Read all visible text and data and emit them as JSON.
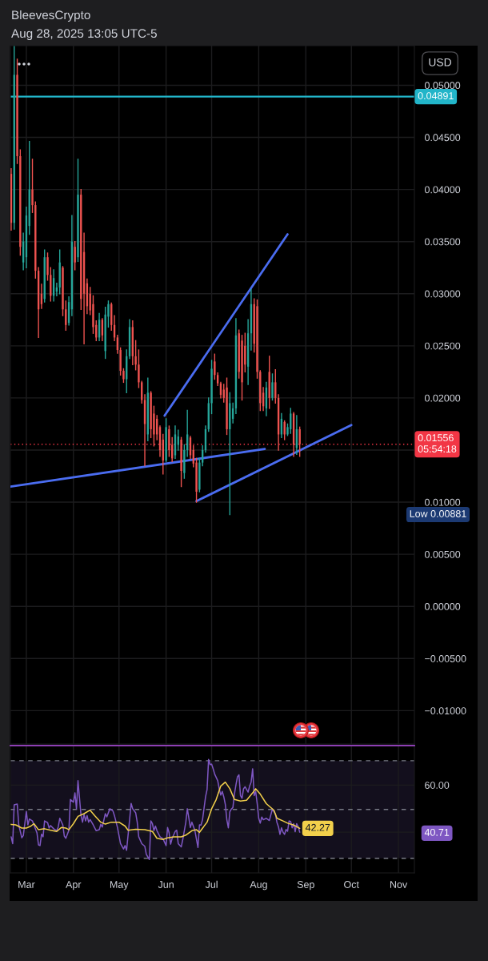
{
  "chart_data": [
    {
      "type": "candlestick",
      "title": "BleevesCrypto",
      "subtitle": "Aug 28, 2025 13:05 UTC-5",
      "ylabel": "USD",
      "x": [
        "2025-02-19",
        "2025-02-21",
        "2025-02-23",
        "2025-02-25",
        "2025-02-27",
        "2025-03-01",
        "2025-03-03",
        "2025-03-05",
        "2025-03-07",
        "2025-03-09",
        "2025-03-11",
        "2025-03-13",
        "2025-03-15",
        "2025-03-17",
        "2025-03-19",
        "2025-03-21",
        "2025-03-23",
        "2025-03-25",
        "2025-03-27",
        "2025-03-29",
        "2025-03-31",
        "2025-04-02",
        "2025-04-04",
        "2025-04-06",
        "2025-04-08",
        "2025-04-10",
        "2025-04-12",
        "2025-04-14",
        "2025-04-16",
        "2025-04-18",
        "2025-04-20",
        "2025-04-22",
        "2025-04-24",
        "2025-04-26",
        "2025-04-28",
        "2025-04-30",
        "2025-05-02",
        "2025-05-04",
        "2025-05-06",
        "2025-05-08",
        "2025-05-10",
        "2025-05-12",
        "2025-05-14",
        "2025-05-16",
        "2025-05-18",
        "2025-05-20",
        "2025-05-22",
        "2025-05-24",
        "2025-05-26",
        "2025-05-28",
        "2025-05-30",
        "2025-06-01",
        "2025-06-03",
        "2025-06-05",
        "2025-06-07",
        "2025-06-09",
        "2025-06-11",
        "2025-06-13",
        "2025-06-15",
        "2025-06-17",
        "2025-06-19",
        "2025-06-21",
        "2025-06-23",
        "2025-06-25",
        "2025-06-27",
        "2025-06-29",
        "2025-07-01",
        "2025-07-03",
        "2025-07-05",
        "2025-07-07",
        "2025-07-09",
        "2025-07-11",
        "2025-07-13",
        "2025-07-15",
        "2025-07-17",
        "2025-07-19",
        "2025-07-21",
        "2025-07-23",
        "2025-07-25",
        "2025-07-27",
        "2025-07-29",
        "2025-07-31",
        "2025-08-02",
        "2025-08-04",
        "2025-08-06",
        "2025-08-08",
        "2025-08-10",
        "2025-08-12",
        "2025-08-14",
        "2025-08-16",
        "2025-08-18",
        "2025-08-20",
        "2025-08-22",
        "2025-08-24",
        "2025-08-26",
        "2025-08-28"
      ],
      "ohlc": [
        [
          0.0415,
          0.042,
          0.0361,
          0.0368
        ],
        [
          0.0368,
          0.0537,
          0.0362,
          0.051
        ],
        [
          0.051,
          0.0525,
          0.0425,
          0.0432
        ],
        [
          0.0432,
          0.0438,
          0.0337,
          0.0345
        ],
        [
          0.033,
          0.0358,
          0.0323,
          0.035
        ],
        [
          0.0335,
          0.0383,
          0.0325,
          0.0375
        ],
        [
          0.0365,
          0.0446,
          0.0357,
          0.04
        ],
        [
          0.04,
          0.0429,
          0.0378,
          0.0385
        ],
        [
          0.0385,
          0.0388,
          0.0315,
          0.0322
        ],
        [
          0.0322,
          0.0325,
          0.0258,
          0.0285
        ],
        [
          0.03,
          0.0309,
          0.0286,
          0.029
        ],
        [
          0.0295,
          0.0342,
          0.0292,
          0.0335
        ],
        [
          0.0335,
          0.0339,
          0.0313,
          0.0318
        ],
        [
          0.0318,
          0.0325,
          0.0293,
          0.0298
        ],
        [
          0.0298,
          0.0323,
          0.0293,
          0.0315
        ],
        [
          0.0302,
          0.031,
          0.0298,
          0.0306
        ],
        [
          0.0306,
          0.0342,
          0.03,
          0.033
        ],
        [
          0.0325,
          0.0326,
          0.0279,
          0.0285
        ],
        [
          0.0285,
          0.0293,
          0.0265,
          0.027
        ],
        [
          0.0272,
          0.0297,
          0.027,
          0.0292
        ],
        [
          0.0285,
          0.0375,
          0.0279,
          0.035
        ],
        [
          0.0345,
          0.035,
          0.0323,
          0.033
        ],
        [
          0.0335,
          0.0429,
          0.0331,
          0.0395
        ],
        [
          0.0395,
          0.04,
          0.0285,
          0.0295
        ],
        [
          0.034,
          0.0358,
          0.0252,
          0.03
        ],
        [
          0.031,
          0.0314,
          0.0281,
          0.0288
        ],
        [
          0.03,
          0.0306,
          0.028,
          0.0284
        ],
        [
          0.029,
          0.0298,
          0.0262,
          0.0268
        ],
        [
          0.027,
          0.0274,
          0.0255,
          0.0258
        ],
        [
          0.0258,
          0.0281,
          0.0255,
          0.0275
        ],
        [
          0.0275,
          0.0276,
          0.0255,
          0.026
        ],
        [
          0.0245,
          0.0287,
          0.0238,
          0.028
        ],
        [
          0.0278,
          0.0293,
          0.0268,
          0.029
        ],
        [
          0.029,
          0.0291,
          0.0265,
          0.027
        ],
        [
          0.027,
          0.0279,
          0.0255,
          0.0258
        ],
        [
          0.0258,
          0.026,
          0.0243,
          0.0246
        ],
        [
          0.0246,
          0.0248,
          0.0222,
          0.0226
        ],
        [
          0.0226,
          0.0228,
          0.0215,
          0.0218
        ],
        [
          0.0218,
          0.0246,
          0.0205,
          0.024
        ],
        [
          0.024,
          0.0275,
          0.0238,
          0.0268
        ],
        [
          0.0268,
          0.0274,
          0.0232,
          0.024
        ],
        [
          0.024,
          0.0255,
          0.0227,
          0.0232
        ],
        [
          0.0232,
          0.0246,
          0.021,
          0.0215
        ],
        [
          0.0215,
          0.0216,
          0.0195,
          0.0198
        ],
        [
          0.0198,
          0.0203,
          0.0135,
          0.0175
        ],
        [
          0.0165,
          0.0219,
          0.0159,
          0.0205
        ],
        [
          0.0205,
          0.0206,
          0.0162,
          0.017
        ],
        [
          0.0185,
          0.0192,
          0.0154,
          0.0165
        ],
        [
          0.018,
          0.0183,
          0.016,
          0.0165
        ],
        [
          0.0172,
          0.0173,
          0.0144,
          0.015
        ],
        [
          0.016,
          0.0165,
          0.0127,
          0.014
        ],
        [
          0.014,
          0.018,
          0.0139,
          0.0172
        ],
        [
          0.017,
          0.0173,
          0.0144,
          0.015
        ],
        [
          0.0155,
          0.0162,
          0.0139,
          0.0142
        ],
        [
          0.0145,
          0.0173,
          0.0142,
          0.0165
        ],
        [
          0.0155,
          0.0169,
          0.015,
          0.0163
        ],
        [
          0.016,
          0.0162,
          0.0115,
          0.013
        ],
        [
          0.0128,
          0.0155,
          0.0123,
          0.015
        ],
        [
          0.015,
          0.0188,
          0.0144,
          0.0165
        ],
        [
          0.0162,
          0.0163,
          0.0142,
          0.0145
        ],
        [
          0.015,
          0.0154,
          0.0134,
          0.0137
        ],
        [
          0.0138,
          0.0142,
          0.01,
          0.011
        ],
        [
          0.0112,
          0.0142,
          0.011,
          0.0138
        ],
        [
          0.0138,
          0.0154,
          0.0135,
          0.015
        ],
        [
          0.015,
          0.0173,
          0.0148,
          0.017
        ],
        [
          0.017,
          0.02,
          0.0168,
          0.0195
        ],
        [
          0.0195,
          0.0236,
          0.0185,
          0.0228
        ],
        [
          0.0235,
          0.0242,
          0.0218,
          0.0222
        ],
        [
          0.0222,
          0.0224,
          0.0212,
          0.0214
        ],
        [
          0.0214,
          0.0215,
          0.02,
          0.0203
        ],
        [
          0.0208,
          0.0213,
          0.0196,
          0.02
        ],
        [
          0.021,
          0.0219,
          0.0165,
          0.017
        ],
        [
          0.017,
          0.0205,
          0.00881,
          0.0195
        ],
        [
          0.018,
          0.0195,
          0.0176,
          0.019
        ],
        [
          0.019,
          0.0276,
          0.0185,
          0.026
        ],
        [
          0.0262,
          0.0265,
          0.0219,
          0.0225
        ],
        [
          0.0255,
          0.026,
          0.0198,
          0.0215
        ],
        [
          0.025,
          0.0262,
          0.0225,
          0.0232
        ],
        [
          0.023,
          0.0275,
          0.0213,
          0.0262
        ],
        [
          0.0262,
          0.0304,
          0.0246,
          0.029
        ],
        [
          0.029,
          0.0295,
          0.0244,
          0.0252
        ],
        [
          0.0288,
          0.0294,
          0.0219,
          0.0225
        ],
        [
          0.0225,
          0.0226,
          0.0188,
          0.0195
        ],
        [
          0.0205,
          0.021,
          0.0188,
          0.0192
        ],
        [
          0.019,
          0.0215,
          0.0183,
          0.021
        ],
        [
          0.0225,
          0.024,
          0.019,
          0.02
        ],
        [
          0.02,
          0.0223,
          0.0198,
          0.0215
        ],
        [
          0.0215,
          0.0227,
          0.0195,
          0.02
        ],
        [
          0.02,
          0.0203,
          0.015,
          0.0165
        ],
        [
          0.0165,
          0.0185,
          0.0162,
          0.018
        ],
        [
          0.0177,
          0.0178,
          0.016,
          0.0165
        ],
        [
          0.0165,
          0.0175,
          0.0164,
          0.0172
        ],
        [
          0.017,
          0.019,
          0.0166,
          0.0185
        ],
        [
          0.0185,
          0.0186,
          0.0144,
          0.0155
        ],
        [
          0.0152,
          0.0183,
          0.0146,
          0.017
        ],
        [
          0.017,
          0.0172,
          0.0144,
          0.01556
        ]
      ],
      "colors": [
        "#ef5350",
        "#26a69a",
        "#ef5350",
        "#ef5350",
        "#26a69a",
        "#26a69a",
        "#26a69a",
        "#ef5350",
        "#ef5350",
        "#ef5350",
        "#ef5350",
        "#26a69a",
        "#ef5350",
        "#ef5350",
        "#26a69a",
        "#26a69a",
        "#26a69a",
        "#ef5350",
        "#ef5350",
        "#26a69a",
        "#26a69a",
        "#ef5350",
        "#26a69a",
        "#ef5350",
        "#ef5350",
        "#ef5350",
        "#ef5350",
        "#ef5350",
        "#ef5350",
        "#26a69a",
        "#ef5350",
        "#26a69a",
        "#26a69a",
        "#ef5350",
        "#ef5350",
        "#ef5350",
        "#ef5350",
        "#ef5350",
        "#26a69a",
        "#26a69a",
        "#ef5350",
        "#ef5350",
        "#ef5350",
        "#ef5350",
        "#ef5350",
        "#26a69a",
        "#ef5350",
        "#ef5350",
        "#ef5350",
        "#ef5350",
        "#ef5350",
        "#26a69a",
        "#ef5350",
        "#ef5350",
        "#26a69a",
        "#26a69a",
        "#ef5350",
        "#26a69a",
        "#26a69a",
        "#ef5350",
        "#ef5350",
        "#ef5350",
        "#26a69a",
        "#26a69a",
        "#26a69a",
        "#26a69a",
        "#26a69a",
        "#ef5350",
        "#ef5350",
        "#ef5350",
        "#ef5350",
        "#ef5350",
        "#26a69a",
        "#26a69a",
        "#26a69a",
        "#ef5350",
        "#ef5350",
        "#ef5350",
        "#26a69a",
        "#26a69a",
        "#ef5350",
        "#ef5350",
        "#ef5350",
        "#ef5350",
        "#26a69a",
        "#ef5350",
        "#26a69a",
        "#ef5350",
        "#ef5350",
        "#26a69a",
        "#ef5350",
        "#26a69a",
        "#26a69a",
        "#ef5350",
        "#26a69a",
        "#ef5350"
      ],
      "series": [
        {
          "type": "line",
          "color": "#4a6cf0",
          "x": [
            "2025-02-18T12:00",
            "2025-08-05"
          ],
          "values": [
            0.0115,
            0.0151
          ]
        },
        {
          "type": "line",
          "color": "#4a6cf0",
          "x": [
            "2025-05-31",
            "2025-08-20"
          ],
          "values": [
            0.0183,
            0.0357
          ]
        },
        {
          "type": "line",
          "color": "#4a6cf0",
          "x": [
            "2025-06-21",
            "2025-10-01"
          ],
          "values": [
            0.0101,
            0.0174
          ]
        }
      ],
      "xlim": [
        "2025-02-18T12:00",
        "2025-11-11T12:00"
      ],
      "xticks": [
        {
          "value": "2025-03-01",
          "label": null
        },
        {
          "value": "2025-04-01",
          "label": null
        },
        {
          "value": "2025-05-01",
          "label": null
        },
        {
          "value": "2025-06-01",
          "label": null
        },
        {
          "value": "2025-07-01",
          "label": null
        },
        {
          "value": "2025-08-01",
          "label": null
        },
        {
          "value": "2025-09-01",
          "label": null
        },
        {
          "value": "2025-10-01",
          "label": null
        },
        {
          "value": "2025-11-01",
          "label": null
        }
      ],
      "ylim": [
        -0.0132,
        0.0538
      ],
      "yticks": [
        {
          "value": 0.05,
          "label": "0.05000"
        },
        {
          "value": 0.045,
          "label": "0.04500"
        },
        {
          "value": 0.04,
          "label": "0.04000"
        },
        {
          "value": 0.035,
          "label": "0.03500"
        },
        {
          "value": 0.03,
          "label": "0.03000"
        },
        {
          "value": 0.025,
          "label": "0.02500"
        },
        {
          "value": 0.02,
          "label": "0.02000"
        },
        {
          "value": 0.015,
          "label": null
        },
        {
          "value": 0.01,
          "label": "0.01000"
        },
        {
          "value": 0.005,
          "label": "0.00500"
        },
        {
          "value": 0,
          "label": "0.00000"
        },
        {
          "value": -0.005,
          "label": "−0.00500"
        },
        {
          "value": -0.01,
          "label": "−0.01000"
        }
      ],
      "tick_labels": "y",
      "grid": true,
      "ref_lines": [
        {
          "axis": "y",
          "value": 0.04891,
          "label": "0.04891",
          "color": "#22b5c9"
        },
        {
          "axis": "y",
          "value": 0.01556,
          "label": "0.01556\n05:54:18",
          "color": "#f23645",
          "line_style": "dotted"
        }
      ],
      "annotations": [
        "Low 0.00881"
      ]
    },
    {
      "type": "line",
      "series": [
        {
          "color": "#7e57c2",
          "x": [
            "2025-02-19",
            "2025-02-20",
            "2025-02-21",
            "2025-02-23",
            "2025-02-24",
            "2025-02-26",
            "2025-02-27",
            "2025-03-01",
            "2025-03-02",
            "2025-03-03",
            "2025-03-05",
            "2025-03-06",
            "2025-03-08",
            "2025-03-09",
            "2025-03-10",
            "2025-03-11",
            "2025-03-12",
            "2025-03-13",
            "2025-03-15",
            "2025-03-16",
            "2025-03-17",
            "2025-03-19",
            "2025-03-21",
            "2025-03-22",
            "2025-03-23",
            "2025-03-25",
            "2025-03-26",
            "2025-03-27",
            "2025-03-29",
            "2025-03-30",
            "2025-04-01",
            "2025-04-02",
            "2025-04-03",
            "2025-04-04",
            "2025-04-05",
            "2025-04-06",
            "2025-04-07",
            "2025-04-08",
            "2025-04-09",
            "2025-04-10",
            "2025-04-11",
            "2025-04-12",
            "2025-04-14",
            "2025-04-16",
            "2025-04-18",
            "2025-04-19",
            "2025-04-20",
            "2025-04-22",
            "2025-04-23",
            "2025-04-25",
            "2025-04-27",
            "2025-04-28",
            "2025-04-30",
            "2025-05-01",
            "2025-05-02",
            "2025-05-04",
            "2025-05-05",
            "2025-05-06",
            "2025-05-08",
            "2025-05-09",
            "2025-05-10",
            "2025-05-12",
            "2025-05-13",
            "2025-05-14",
            "2025-05-16",
            "2025-05-18",
            "2025-05-19",
            "2025-05-21",
            "2025-05-22",
            "2025-05-23",
            "2025-05-24",
            "2025-05-25",
            "2025-05-26",
            "2025-05-28",
            "2025-05-30",
            "2025-06-01",
            "2025-06-02",
            "2025-06-03",
            "2025-06-04",
            "2025-06-05",
            "2025-06-07",
            "2025-06-08",
            "2025-06-09",
            "2025-06-11",
            "2025-06-12",
            "2025-06-14",
            "2025-06-15",
            "2025-06-17",
            "2025-06-18",
            "2025-06-20",
            "2025-06-22",
            "2025-06-23",
            "2025-06-24",
            "2025-06-25",
            "2025-06-27",
            "2025-06-28",
            "2025-06-29",
            "2025-06-30",
            "2025-07-01",
            "2025-07-02",
            "2025-07-03",
            "2025-07-05",
            "2025-07-06",
            "2025-07-07",
            "2025-07-08",
            "2025-07-09",
            "2025-07-10",
            "2025-07-11",
            "2025-07-12",
            "2025-07-13",
            "2025-07-14",
            "2025-07-15",
            "2025-07-16",
            "2025-07-17",
            "2025-07-18",
            "2025-07-19",
            "2025-07-20",
            "2025-07-21",
            "2025-07-22",
            "2025-07-23",
            "2025-07-25",
            "2025-07-26",
            "2025-07-27",
            "2025-07-28",
            "2025-07-29",
            "2025-07-30",
            "2025-07-31",
            "2025-08-01",
            "2025-08-02",
            "2025-08-03",
            "2025-08-04",
            "2025-08-06",
            "2025-08-08",
            "2025-08-10",
            "2025-08-12",
            "2025-08-13",
            "2025-08-14",
            "2025-08-15",
            "2025-08-16",
            "2025-08-17",
            "2025-08-18",
            "2025-08-19",
            "2025-08-20",
            "2025-08-21",
            "2025-08-22",
            "2025-08-23",
            "2025-08-24",
            "2025-08-25",
            "2025-08-26",
            "2025-08-27",
            "2025-08-28"
          ],
          "values": [
            38.8,
            36.0,
            51.9,
            52.2,
            43.7,
            38.4,
            39.3,
            49.2,
            43.7,
            46.1,
            45.3,
            43.7,
            40.4,
            35.5,
            35.2,
            39.9,
            38.8,
            45.3,
            44.6,
            42.4,
            43.4,
            42.1,
            41.3,
            42.8,
            46.4,
            43.7,
            39.1,
            38.2,
            41.5,
            54.1,
            53.0,
            56.8,
            50.3,
            61.8,
            54.7,
            47.5,
            44.8,
            48.1,
            45.3,
            47.5,
            44.8,
            45.9,
            43.7,
            41.3,
            41.7,
            43.9,
            42.8,
            48.3,
            47.0,
            50.3,
            49.4,
            47.5,
            42.6,
            39.3,
            36.0,
            33.8,
            35.2,
            33.3,
            45.9,
            52.5,
            50.3,
            48.6,
            44.8,
            38.8,
            36.0,
            34.9,
            31.6,
            29.5,
            45.3,
            44.2,
            41.3,
            43.2,
            41.3,
            38.8,
            38.0,
            35.2,
            42.6,
            40.4,
            35.8,
            38.2,
            41.0,
            41.5,
            36.0,
            34.7,
            37.7,
            44.8,
            50.3,
            42.6,
            44.8,
            41.3,
            34.4,
            43.7,
            43.6,
            45.8,
            55.2,
            58.2,
            70.5,
            68.4,
            68.6,
            66.7,
            64.5,
            61.8,
            58.5,
            55.9,
            57.4,
            55.2,
            52.1,
            45.8,
            42.5,
            49.1,
            50.2,
            50.8,
            56.3,
            60.1,
            63.4,
            64.2,
            55.7,
            54.6,
            58.5,
            59.3,
            57.1,
            59.6,
            61.2,
            66.7,
            55.7,
            57.4,
            52.4,
            46.4,
            44.4,
            46.9,
            45.8,
            46.4,
            45.5,
            50.2,
            48.0,
            44.7,
            42.9,
            39.8,
            42.5,
            40.7,
            39.8,
            41.8,
            41.1,
            45.3,
            45.1,
            42.5,
            44.2,
            40.9,
            44.2,
            42.9,
            40.71
          ]
        },
        {
          "color": "#f2d04b",
          "x": [
            "2025-02-19",
            "2025-02-22",
            "2025-02-26",
            "2025-03-01",
            "2025-03-04",
            "2025-03-06",
            "2025-03-09",
            "2025-03-13",
            "2025-03-17",
            "2025-03-21",
            "2025-03-24",
            "2025-03-27",
            "2025-03-29",
            "2025-04-01",
            "2025-04-04",
            "2025-04-08",
            "2025-04-11",
            "2025-04-12",
            "2025-04-15",
            "2025-04-19",
            "2025-04-22",
            "2025-04-26",
            "2025-05-01",
            "2025-05-05",
            "2025-05-07",
            "2025-05-12",
            "2025-05-18",
            "2025-05-23",
            "2025-05-26",
            "2025-05-30",
            "2025-06-02",
            "2025-06-06",
            "2025-06-11",
            "2025-06-14",
            "2025-06-18",
            "2025-06-21",
            "2025-06-23",
            "2025-06-24",
            "2025-06-28",
            "2025-07-01",
            "2025-07-04",
            "2025-07-07",
            "2025-07-10",
            "2025-07-13",
            "2025-07-16",
            "2025-07-20",
            "2025-07-24",
            "2025-07-28",
            "2025-07-30",
            "2025-08-02",
            "2025-08-06",
            "2025-08-11",
            "2025-08-13",
            "2025-08-17",
            "2025-08-20",
            "2025-08-24",
            "2025-08-28"
          ],
          "values": [
            43.9,
            43.7,
            42.4,
            42.4,
            43.2,
            44.2,
            41.7,
            42.1,
            41.5,
            41.0,
            42.6,
            42.4,
            41.7,
            44.2,
            47.2,
            48.3,
            49.4,
            49.7,
            47.5,
            44.8,
            44.0,
            44.8,
            44.8,
            43.2,
            41.5,
            41.9,
            41.7,
            41.0,
            38.2,
            37.7,
            38.4,
            38.8,
            38.8,
            39.5,
            41.3,
            41.7,
            40.6,
            41.5,
            44.8,
            50.3,
            54.1,
            59.6,
            61.2,
            58.5,
            54.1,
            53.5,
            53.8,
            56.8,
            58.5,
            56.3,
            52.4,
            49.7,
            46.4,
            45.3,
            44.4,
            43.6,
            42.27
          ],
          "value_labels": [
            null,
            null,
            null,
            null,
            null,
            null,
            null,
            null,
            null,
            null,
            null,
            null,
            null,
            null,
            null,
            null,
            null,
            null,
            null,
            null,
            null,
            null,
            null,
            null,
            null,
            null,
            null,
            null,
            null,
            null,
            null,
            null,
            null,
            null,
            null,
            null,
            null,
            null,
            null,
            null,
            null,
            null,
            null,
            null,
            null,
            null,
            null,
            null,
            null,
            null,
            null,
            null,
            null,
            null,
            null,
            null,
            "42.27"
          ]
        }
      ],
      "xlim": [
        "2025-02-18T12:00",
        "2025-11-11T12:00"
      ],
      "xticks": [
        {
          "value": "2025-03-01",
          "label": "Mar"
        },
        {
          "value": "2025-04-01",
          "label": "Apr"
        },
        {
          "value": "2025-05-01",
          "label": "May"
        },
        {
          "value": "2025-06-01",
          "label": "Jun"
        },
        {
          "value": "2025-07-01",
          "label": "Jul"
        },
        {
          "value": "2025-08-01",
          "label": "Aug"
        },
        {
          "value": "2025-09-01",
          "label": "Sep"
        },
        {
          "value": "2025-10-01",
          "label": "Oct"
        },
        {
          "value": "2025-11-01",
          "label": "Nov"
        }
      ],
      "ylim": [
        24,
        76.2
      ],
      "yticks": [
        {
          "value": 60,
          "label": "60.00"
        },
        {
          "value": 40.71,
          "label": "40.71"
        }
      ],
      "grid": true,
      "ref_lines": [
        {
          "axis": "y",
          "value": 70,
          "color": "#787b86",
          "line_style": "dashed"
        },
        {
          "axis": "y",
          "value": 50,
          "color": "#787b86",
          "line_style": "dashed"
        },
        {
          "axis": "y",
          "value": 30,
          "color": "#787b86",
          "line_style": "dashed"
        }
      ],
      "bands": [
        {
          "axis": "y",
          "from": 30,
          "to": 70,
          "color": "#130f1d"
        }
      ]
    }
  ]
}
